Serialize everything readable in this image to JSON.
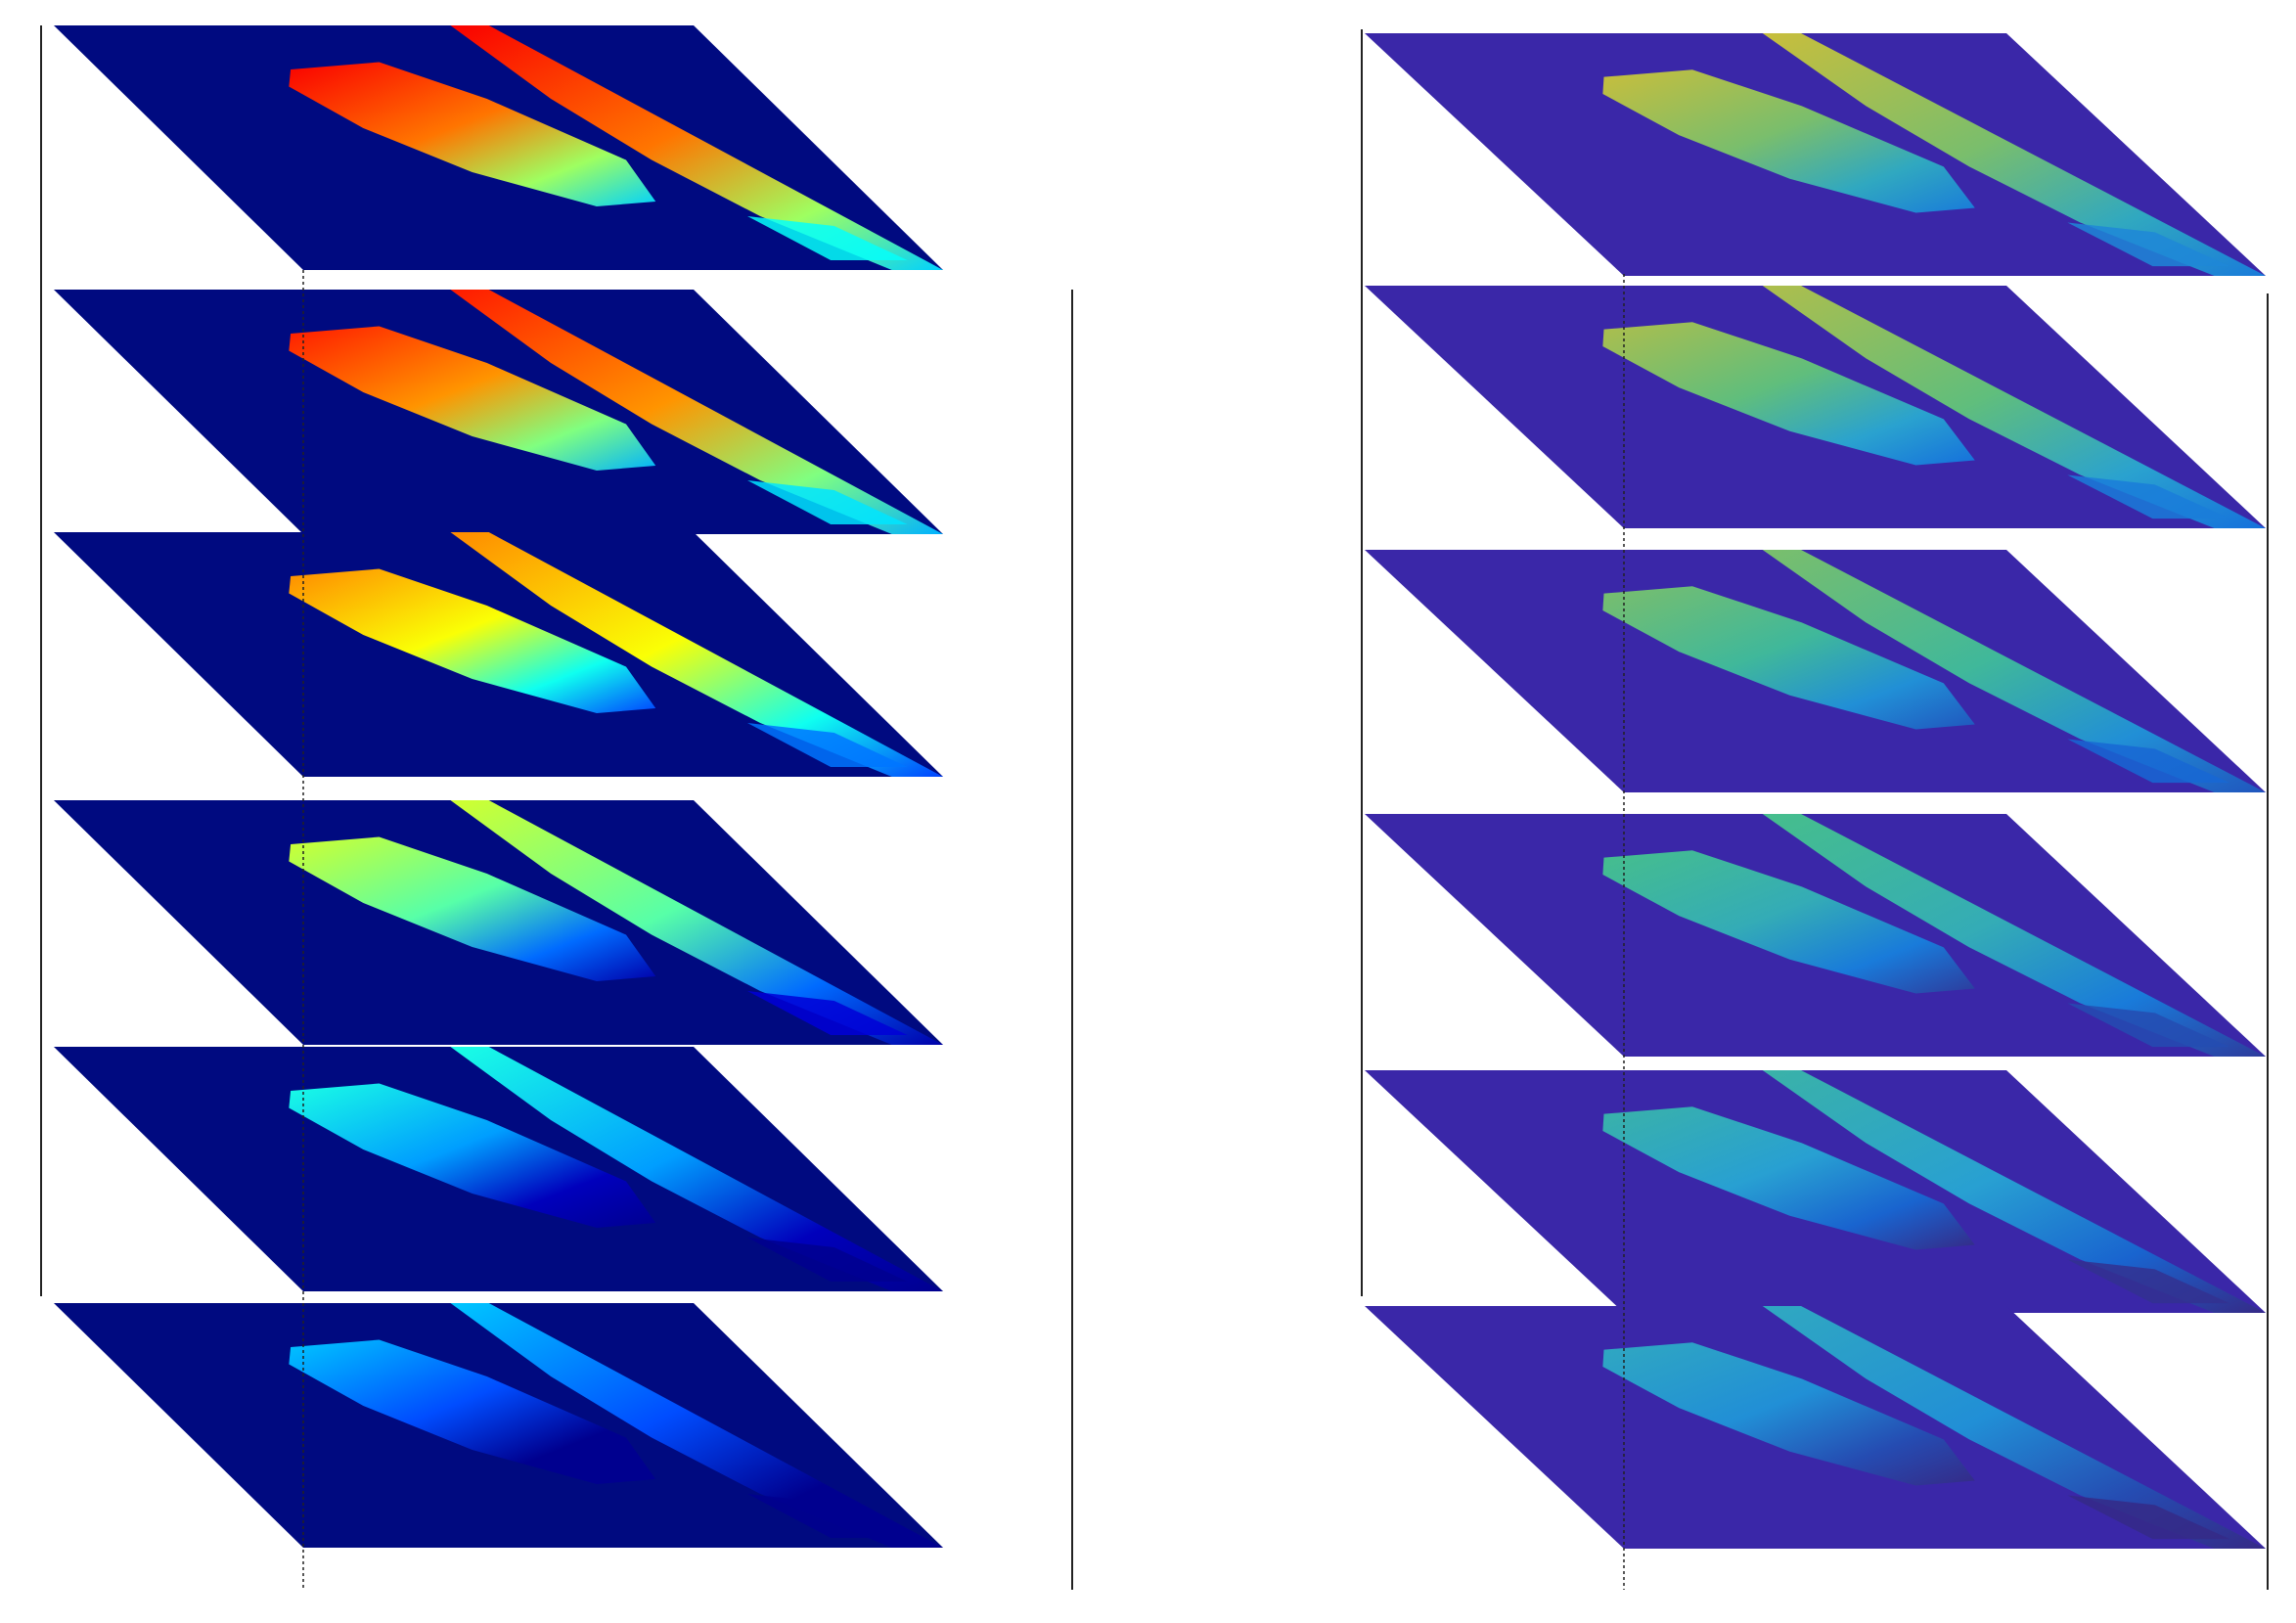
{
  "chart_data": [
    {
      "type": "heatmap",
      "title": "",
      "xlabel": "",
      "ylabel": "",
      "zlabel": "",
      "colormap": "jet",
      "background_color": "#000a80",
      "axes_box": true,
      "grid": false,
      "legend": "none",
      "slices": [
        {
          "index": 1,
          "intensity": 0.88
        },
        {
          "index": 2,
          "intensity": 0.85
        },
        {
          "index": 3,
          "intensity": 0.74
        },
        {
          "index": 4,
          "intensity": 0.58
        },
        {
          "index": 5,
          "intensity": 0.4
        },
        {
          "index": 6,
          "intensity": 0.32
        }
      ]
    },
    {
      "type": "heatmap",
      "title": "",
      "xlabel": "",
      "ylabel": "",
      "zlabel": "",
      "colormap": "parula",
      "background_color": "#3a27a8",
      "axes_box": true,
      "grid": false,
      "legend": "none",
      "slices": [
        {
          "index": 1,
          "intensity": 0.8
        },
        {
          "index": 2,
          "intensity": 0.76
        },
        {
          "index": 3,
          "intensity": 0.68
        },
        {
          "index": 4,
          "intensity": 0.6
        },
        {
          "index": 5,
          "intensity": 0.52
        },
        {
          "index": 6,
          "intensity": 0.45
        }
      ]
    }
  ]
}
